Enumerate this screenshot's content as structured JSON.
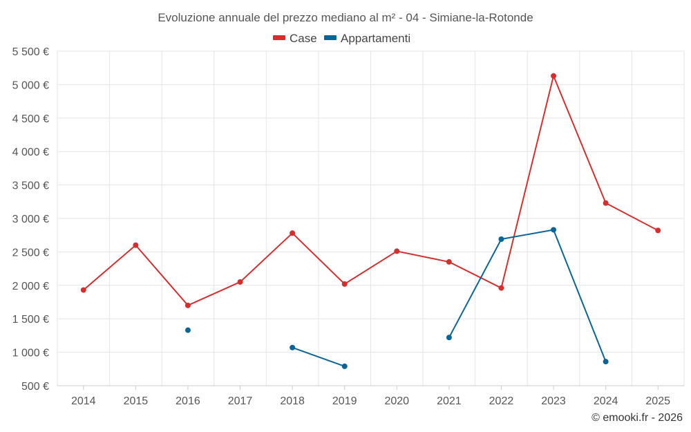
{
  "chart_data": {
    "type": "line",
    "title": "Evoluzione annuale del prezzo mediano al m² - 04 - Simiane-la-Rotonde",
    "xlabel": "",
    "ylabel": "",
    "categories": [
      "2014",
      "2015",
      "2016",
      "2017",
      "2018",
      "2019",
      "2020",
      "2021",
      "2022",
      "2023",
      "2024",
      "2025"
    ],
    "y_ticks": [
      "500 €",
      "1 000 €",
      "1 500 €",
      "2 000 €",
      "2 500 €",
      "3 000 €",
      "3 500 €",
      "4 000 €",
      "4 500 €",
      "5 000 €",
      "5 500 €"
    ],
    "ylim": [
      500,
      5500
    ],
    "grid": true,
    "legend_position": "top",
    "series": [
      {
        "name": "Case",
        "color": "#d32f2f",
        "values": [
          1930,
          2600,
          1700,
          2050,
          2780,
          2020,
          2510,
          2350,
          1960,
          5130,
          3230,
          2820
        ]
      },
      {
        "name": "Appartamenti",
        "color": "#0a6496",
        "values": [
          null,
          null,
          1330,
          null,
          1070,
          790,
          null,
          1220,
          2690,
          2830,
          860,
          null
        ]
      }
    ],
    "credit": "© emooki.fr - 2026"
  }
}
